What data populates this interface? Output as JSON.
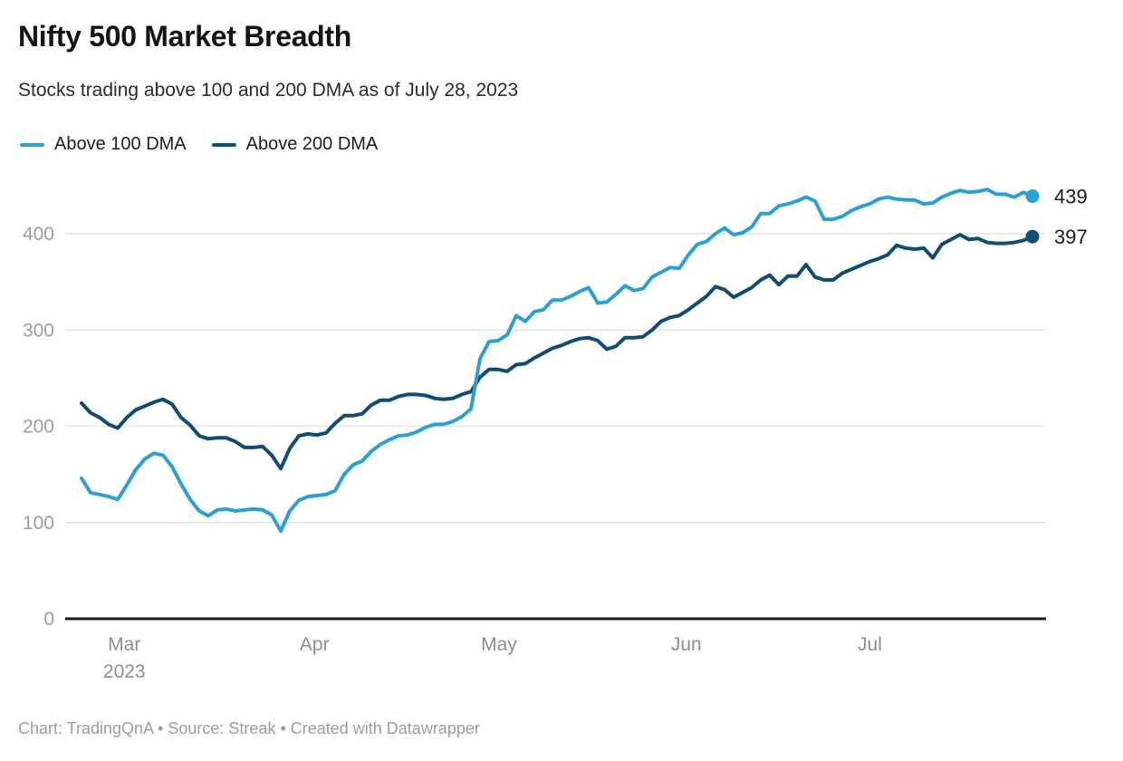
{
  "header": {
    "title": "Nifty 500 Market Breadth",
    "subtitle": "Stocks trading above 100 and 200 DMA as of July 28, 2023"
  },
  "legend": {
    "items": [
      {
        "label": "Above 100 DMA",
        "color": "#2aa0d5"
      },
      {
        "label": "Above 200 DMA",
        "color": "#0f4d75"
      }
    ]
  },
  "chart_data": {
    "type": "line",
    "title": "Nifty 500 Market Breadth",
    "subtitle": "Stocks trading above 100 and 200 DMA as of July 28, 2023",
    "grid": "horizontal",
    "legend_position": "top-left",
    "colors": {
      "grid": "#e4e4e4",
      "baseline": "#1a1a1a",
      "axis_text": "#9c9c9c",
      "x_axis_text": "#8e8e8e",
      "end_label_text": "#1a1a1a"
    },
    "y_axis": {
      "ticks": [
        0,
        100,
        200,
        300,
        400
      ],
      "range": [
        0,
        400
      ]
    },
    "x_axis": {
      "ticks": [
        {
          "label": "Mar",
          "sublabel": "2023",
          "pos": 0.045
        },
        {
          "label": "Apr",
          "pos": 0.245
        },
        {
          "label": "May",
          "pos": 0.439
        },
        {
          "label": "Jun",
          "pos": 0.636
        },
        {
          "label": "Jul",
          "pos": 0.829
        }
      ]
    },
    "series": [
      {
        "name": "Above 100 DMA",
        "color": "#2aa0d5",
        "end_label": "439",
        "end_value": 439,
        "values": [
          146,
          131,
          129,
          127,
          124,
          139,
          155,
          166,
          172,
          170,
          158,
          140,
          124,
          112,
          107,
          113,
          114,
          112,
          113,
          114,
          113,
          108,
          91,
          112,
          123,
          127,
          128,
          129,
          133,
          150,
          160,
          164,
          174,
          181,
          186,
          190,
          191,
          194,
          199,
          202,
          202,
          205,
          210,
          218,
          270,
          288,
          289,
          295,
          315,
          309,
          319,
          321,
          331,
          331,
          335,
          340,
          344,
          328,
          329,
          337,
          346,
          341,
          343,
          355,
          360,
          365,
          364,
          378,
          389,
          392,
          400,
          406,
          399,
          401,
          407,
          421,
          421,
          429,
          431,
          434,
          438,
          434,
          415,
          415,
          418,
          424,
          428,
          431,
          436,
          438,
          436,
          435,
          435,
          431,
          432,
          438,
          442,
          445,
          443,
          444,
          446,
          441,
          441,
          438,
          443,
          439
        ]
      },
      {
        "name": "Above 200 DMA",
        "color": "#0f4d75",
        "end_label": "397",
        "end_value": 397,
        "values": [
          224,
          214,
          209,
          202,
          198,
          209,
          217,
          221,
          225,
          228,
          223,
          209,
          201,
          190,
          187,
          188,
          188,
          184,
          178,
          178,
          179,
          170,
          156,
          177,
          190,
          192,
          191,
          193,
          203,
          211,
          211,
          213,
          222,
          227,
          227,
          231,
          233,
          233,
          232,
          229,
          228,
          229,
          233,
          236,
          251,
          259,
          259,
          257,
          264,
          265,
          271,
          276,
          281,
          284,
          288,
          291,
          292,
          289,
          280,
          283,
          292,
          292,
          293,
          300,
          309,
          313,
          315,
          321,
          328,
          335,
          345,
          342,
          334,
          339,
          344,
          352,
          357,
          347,
          356,
          356,
          368,
          355,
          352,
          352,
          359,
          363,
          367,
          371,
          374,
          378,
          388,
          385,
          384,
          385,
          375,
          389,
          394,
          399,
          394,
          395,
          391,
          390,
          390,
          391,
          393,
          397
        ]
      }
    ]
  },
  "footer": {
    "credit": "Chart: TradingQnA • Source: Streak • Created with Datawrapper"
  }
}
